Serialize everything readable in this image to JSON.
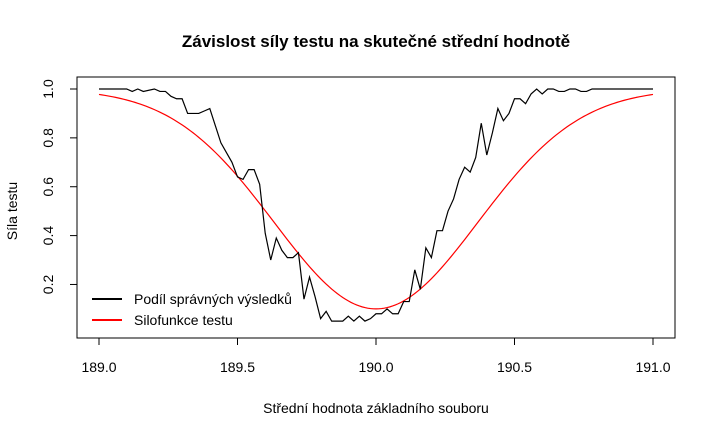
{
  "chart_data": {
    "type": "line",
    "title": "Závislost síly testu na skutečné střední hodnotě",
    "xlabel": "Střední hodnota základního souboru",
    "ylabel": "Síla testu",
    "xlim": [
      189.0,
      191.0
    ],
    "ylim": [
      0.03,
      1.0
    ],
    "xticks": [
      189.0,
      189.5,
      190.0,
      190.5,
      191.0
    ],
    "xtick_labels": [
      "189.0",
      "189.5",
      "190.0",
      "190.5",
      "191.0"
    ],
    "yticks": [
      0.2,
      0.4,
      0.6,
      0.8,
      1.0
    ],
    "ytick_labels": [
      "0.2",
      "0.4",
      "0.6",
      "0.8",
      "1.0"
    ],
    "grid": false,
    "legend_position": "bottom-left",
    "series": [
      {
        "name": "Podíl správných výsledků",
        "color": "#000000",
        "x": [
          189.0,
          189.1,
          189.12,
          189.14,
          189.16,
          189.2,
          189.22,
          189.24,
          189.26,
          189.28,
          189.3,
          189.32,
          189.34,
          189.36,
          189.38,
          189.4,
          189.42,
          189.44,
          189.46,
          189.48,
          189.5,
          189.52,
          189.54,
          189.56,
          189.58,
          189.6,
          189.62,
          189.64,
          189.66,
          189.68,
          189.7,
          189.72,
          189.74,
          189.76,
          189.78,
          189.8,
          189.82,
          189.84,
          189.86,
          189.88,
          189.9,
          189.92,
          189.94,
          189.96,
          189.98,
          190.0,
          190.02,
          190.04,
          190.06,
          190.08,
          190.1,
          190.12,
          190.14,
          190.16,
          190.18,
          190.2,
          190.22,
          190.24,
          190.26,
          190.28,
          190.3,
          190.32,
          190.34,
          190.36,
          190.38,
          190.4,
          190.42,
          190.44,
          190.46,
          190.48,
          190.5,
          190.52,
          190.54,
          190.56,
          190.58,
          190.6,
          190.62,
          190.64,
          190.66,
          190.68,
          190.7,
          190.72,
          190.74,
          190.76,
          190.78,
          190.8,
          190.82,
          190.84,
          190.86,
          190.88,
          190.9,
          190.92,
          190.94,
          190.96,
          190.98,
          191.0
        ],
        "y": [
          1.0,
          1.0,
          0.99,
          1.0,
          0.99,
          1.0,
          0.99,
          0.99,
          0.97,
          0.96,
          0.96,
          0.9,
          0.9,
          0.9,
          0.91,
          0.92,
          0.85,
          0.78,
          0.74,
          0.7,
          0.64,
          0.63,
          0.67,
          0.67,
          0.61,
          0.41,
          0.3,
          0.39,
          0.34,
          0.31,
          0.31,
          0.33,
          0.14,
          0.23,
          0.15,
          0.06,
          0.09,
          0.05,
          0.05,
          0.05,
          0.07,
          0.05,
          0.07,
          0.05,
          0.06,
          0.08,
          0.08,
          0.1,
          0.08,
          0.08,
          0.13,
          0.13,
          0.26,
          0.18,
          0.35,
          0.31,
          0.42,
          0.42,
          0.5,
          0.55,
          0.63,
          0.68,
          0.66,
          0.72,
          0.86,
          0.73,
          0.82,
          0.92,
          0.87,
          0.9,
          0.96,
          0.96,
          0.94,
          0.98,
          1.0,
          0.98,
          1.0,
          1.0,
          0.99,
          0.99,
          1.0,
          1.0,
          0.99,
          0.99,
          1.0,
          1.0,
          1.0,
          1.0,
          1.0,
          1.0,
          1.0,
          1.0,
          1.0,
          1.0,
          1.0,
          1.0
        ]
      },
      {
        "name": "Silofunkce testu",
        "color": "#ff0000",
        "function": "power",
        "x_start": 189.0,
        "x_end": 191.0,
        "mu0": 190.0,
        "min_power": 0.1,
        "width": 0.52
      }
    ]
  }
}
